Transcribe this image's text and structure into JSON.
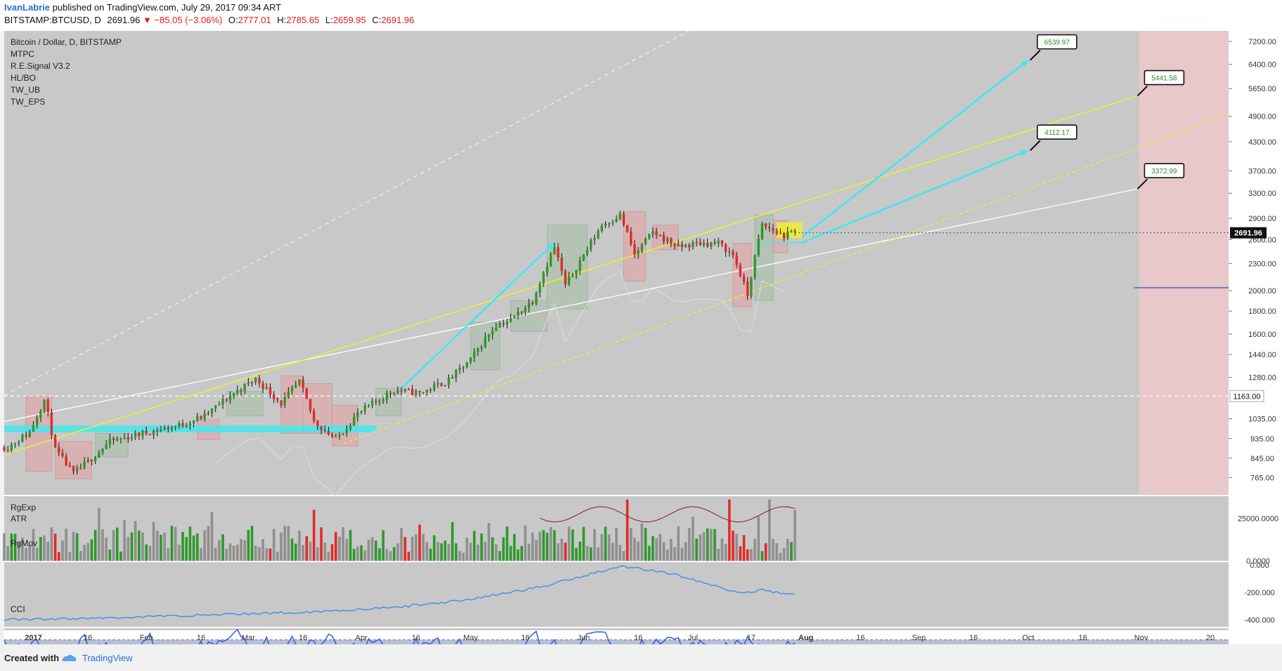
{
  "header": {
    "author": "IvanLabrie",
    "published_text": "published on TradingView.com, July 29, 2017 09:34 ART",
    "symbol": "BITSTAMP:BTCUSD, D",
    "last_price": "2691.96",
    "change": "▼ −85.05 (−3.06%)",
    "o_label": "O:",
    "o_value": "2777.01",
    "h_label": "H:",
    "h_value": "2785.65",
    "l_label": "L:",
    "l_value": "2659.95",
    "c_label": "C:",
    "c_value": "2691.96"
  },
  "legend": [
    "Bitcoin / Dollar, D, BITSTAMP",
    "MTPC",
    "R.E.Signal V3.2",
    "HL/BO",
    "TW_UB",
    "TW_EPS"
  ],
  "colors": {
    "up": "#2d9a2a",
    "down": "#e32a2a",
    "cyan": "#3ee8ee",
    "yellow": "#eef030",
    "pane_bg": "#c8c8c8",
    "forecast_bg": "#e8c8c8",
    "rsi_band": "#b9bfd6"
  },
  "panes": {
    "vol_label": "RgExp",
    "atr_label": "ATR",
    "mov_label": "RgMov",
    "cci_label": "CCI"
  },
  "footer": {
    "created_with": "Created with",
    "brand": "TradingView"
  },
  "chart_data": [
    {
      "type": "candlestick",
      "title": "Bitcoin / Dollar, D, BITSTAMP",
      "yscale": "log",
      "ylim": [
        700,
        7600
      ],
      "xlim": [
        "2016-12-24",
        "2017-11-25"
      ],
      "x_ticks": [
        "2017",
        "16",
        "Feb",
        "16",
        "Mar",
        "16",
        "Apr",
        "16",
        "May",
        "16",
        "Jun",
        "16",
        "Jul",
        "16",
        "17",
        "Aug",
        "16",
        "Sep",
        "16",
        "Oct",
        "16",
        "Nov",
        "20"
      ],
      "y_ticks": [
        "7200.00",
        "6400.00",
        "5650.00",
        "4900.00",
        "4300.00",
        "3700.00",
        "3300.00",
        "2900.00",
        "2600.00",
        "2300.00",
        "2000.00",
        "1800.00",
        "1600.00",
        "1440.00",
        "1280.00",
        "1035.00",
        "935.00",
        "845.00",
        "765.00"
      ],
      "y_tick_values": [
        7200,
        6400,
        5650,
        4900,
        4300,
        3700,
        3300,
        2900,
        2600,
        2300,
        2000,
        1800,
        1600,
        1440,
        1280,
        1035,
        935,
        845,
        765
      ],
      "current_price_label": "2691.96",
      "current_price": 2691.96,
      "horizontal_level_label": "1163.00",
      "horizontal_level": 1163,
      "targets": [
        {
          "label": "6539.97",
          "value": 6539.97,
          "date": "2017-10-01"
        },
        {
          "label": "5441.58",
          "value": 5441.58,
          "date": "2017-10-31"
        },
        {
          "label": "4112.17",
          "value": 4112.17,
          "date": "2017-10-01"
        },
        {
          "label": "3372.99",
          "value": 3372.99,
          "date": "2017-10-31"
        }
      ],
      "forecast_zone": [
        "2017-10-30",
        "2017-11-22"
      ],
      "blue_level": 2030,
      "price_path": [
        [
          "2016-12-25",
          895
        ],
        [
          "2016-12-31",
          965
        ],
        [
          "2017-01-04",
          1140
        ],
        [
          "2017-01-07",
          880
        ],
        [
          "2017-01-12",
          780
        ],
        [
          "2017-01-16",
          830
        ],
        [
          "2017-01-22",
          920
        ],
        [
          "2017-01-31",
          960
        ],
        [
          "2017-02-10",
          1000
        ],
        [
          "2017-02-17",
          1050
        ],
        [
          "2017-02-25",
          1180
        ],
        [
          "2017-03-03",
          1270
        ],
        [
          "2017-03-10",
          1120
        ],
        [
          "2017-03-15",
          1250
        ],
        [
          "2017-03-19",
          1020
        ],
        [
          "2017-03-25",
          930
        ],
        [
          "2017-03-31",
          1060
        ],
        [
          "2017-04-10",
          1200
        ],
        [
          "2017-04-17",
          1180
        ],
        [
          "2017-04-25",
          1260
        ],
        [
          "2017-05-01",
          1400
        ],
        [
          "2017-05-08",
          1680
        ],
        [
          "2017-05-12",
          1720
        ],
        [
          "2017-05-18",
          1900
        ],
        [
          "2017-05-24",
          2500
        ],
        [
          "2017-05-27",
          2050
        ],
        [
          "2017-06-01",
          2400
        ],
        [
          "2017-06-06",
          2800
        ],
        [
          "2017-06-11",
          2950
        ],
        [
          "2017-06-15",
          2400
        ],
        [
          "2017-06-20",
          2700
        ],
        [
          "2017-06-27",
          2500
        ],
        [
          "2017-07-02",
          2550
        ],
        [
          "2017-07-08",
          2550
        ],
        [
          "2017-07-12",
          2400
        ],
        [
          "2017-07-16",
          1950
        ],
        [
          "2017-07-20",
          2800
        ],
        [
          "2017-07-26",
          2650
        ],
        [
          "2017-07-29",
          2700
        ]
      ]
    },
    {
      "type": "bar",
      "title": "RgExp",
      "secondary_title": "ATR",
      "y_ticks": [
        "25000.0000",
        "0.0000"
      ],
      "y_tick_values": [
        25000,
        0
      ],
      "ylim": [
        0,
        38000
      ]
    },
    {
      "type": "line",
      "title": "RgMov",
      "y_ticks": [
        "0.000",
        "-200.000",
        "-400.000"
      ],
      "y_tick_values": [
        0,
        -200,
        -400
      ],
      "ylim": [
        -450,
        20
      ],
      "x": [
        "2016-12-24",
        "2017-01-15",
        "2017-02-15",
        "2017-03-15",
        "2017-04-10",
        "2017-05-01",
        "2017-05-20",
        "2017-06-05",
        "2017-06-12",
        "2017-06-25",
        "2017-07-05",
        "2017-07-15",
        "2017-07-20",
        "2017-07-29"
      ],
      "y": [
        -400,
        -390,
        -365,
        -345,
        -310,
        -250,
        -160,
        -50,
        -10,
        -60,
        -140,
        -210,
        -180,
        -220
      ]
    },
    {
      "type": "line",
      "title": "CCI",
      "y_ticks": [
        "0.0000"
      ],
      "y_tick_values": [
        0
      ],
      "ylim": [
        -260,
        260
      ],
      "band": [
        -100,
        100
      ]
    }
  ]
}
